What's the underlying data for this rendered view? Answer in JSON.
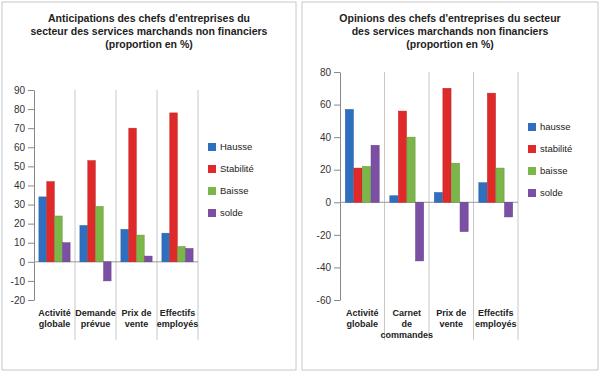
{
  "chart_data": [
    {
      "type": "bar",
      "title": "Anticipations des chefs d'entreprises du secteur des services marchands non financiers",
      "subtitle": "(proportion en %)",
      "categories": [
        "Activité globale",
        "Demande prévue",
        "Prix de vente",
        "Effectifs employés"
      ],
      "series": [
        {
          "name": "Hausse",
          "color": "#2f6fc0",
          "values": [
            34,
            19,
            17,
            15
          ]
        },
        {
          "name": "Stabilité",
          "color": "#e02a2a",
          "values": [
            42,
            53,
            70,
            78
          ]
        },
        {
          "name": "Baisse",
          "color": "#7ab648",
          "values": [
            24,
            29,
            14,
            8
          ]
        },
        {
          "name": "solde",
          "color": "#7b4fa3",
          "values": [
            10,
            -10,
            3,
            7
          ]
        }
      ],
      "ylim": [
        -20,
        90
      ],
      "yticks": [
        -20,
        -10,
        0,
        10,
        20,
        30,
        40,
        50,
        60,
        70,
        80,
        90
      ],
      "grid": false,
      "legend": "right"
    },
    {
      "type": "bar",
      "title": "Opinions des chefs d'entreprises du secteur des services marchands non financiers",
      "subtitle": "(proportion en %)",
      "categories": [
        "Activité globale",
        "Carnet de commandes",
        "Prix de vente",
        "Effectifs employés"
      ],
      "series": [
        {
          "name": "hausse",
          "color": "#2f6fc0",
          "values": [
            57,
            4,
            6,
            12
          ]
        },
        {
          "name": "stabilité",
          "color": "#e02a2a",
          "values": [
            21,
            56,
            70,
            67
          ]
        },
        {
          "name": "baisse",
          "color": "#7ab648",
          "values": [
            22,
            40,
            24,
            21
          ]
        },
        {
          "name": "solde",
          "color": "#7b4fa3",
          "values": [
            35,
            -36,
            -18,
            -9
          ]
        }
      ],
      "ylim": [
        -60,
        80
      ],
      "yticks": [
        -60,
        -40,
        -20,
        0,
        20,
        40,
        60,
        80
      ],
      "grid": false,
      "legend": "right"
    }
  ]
}
